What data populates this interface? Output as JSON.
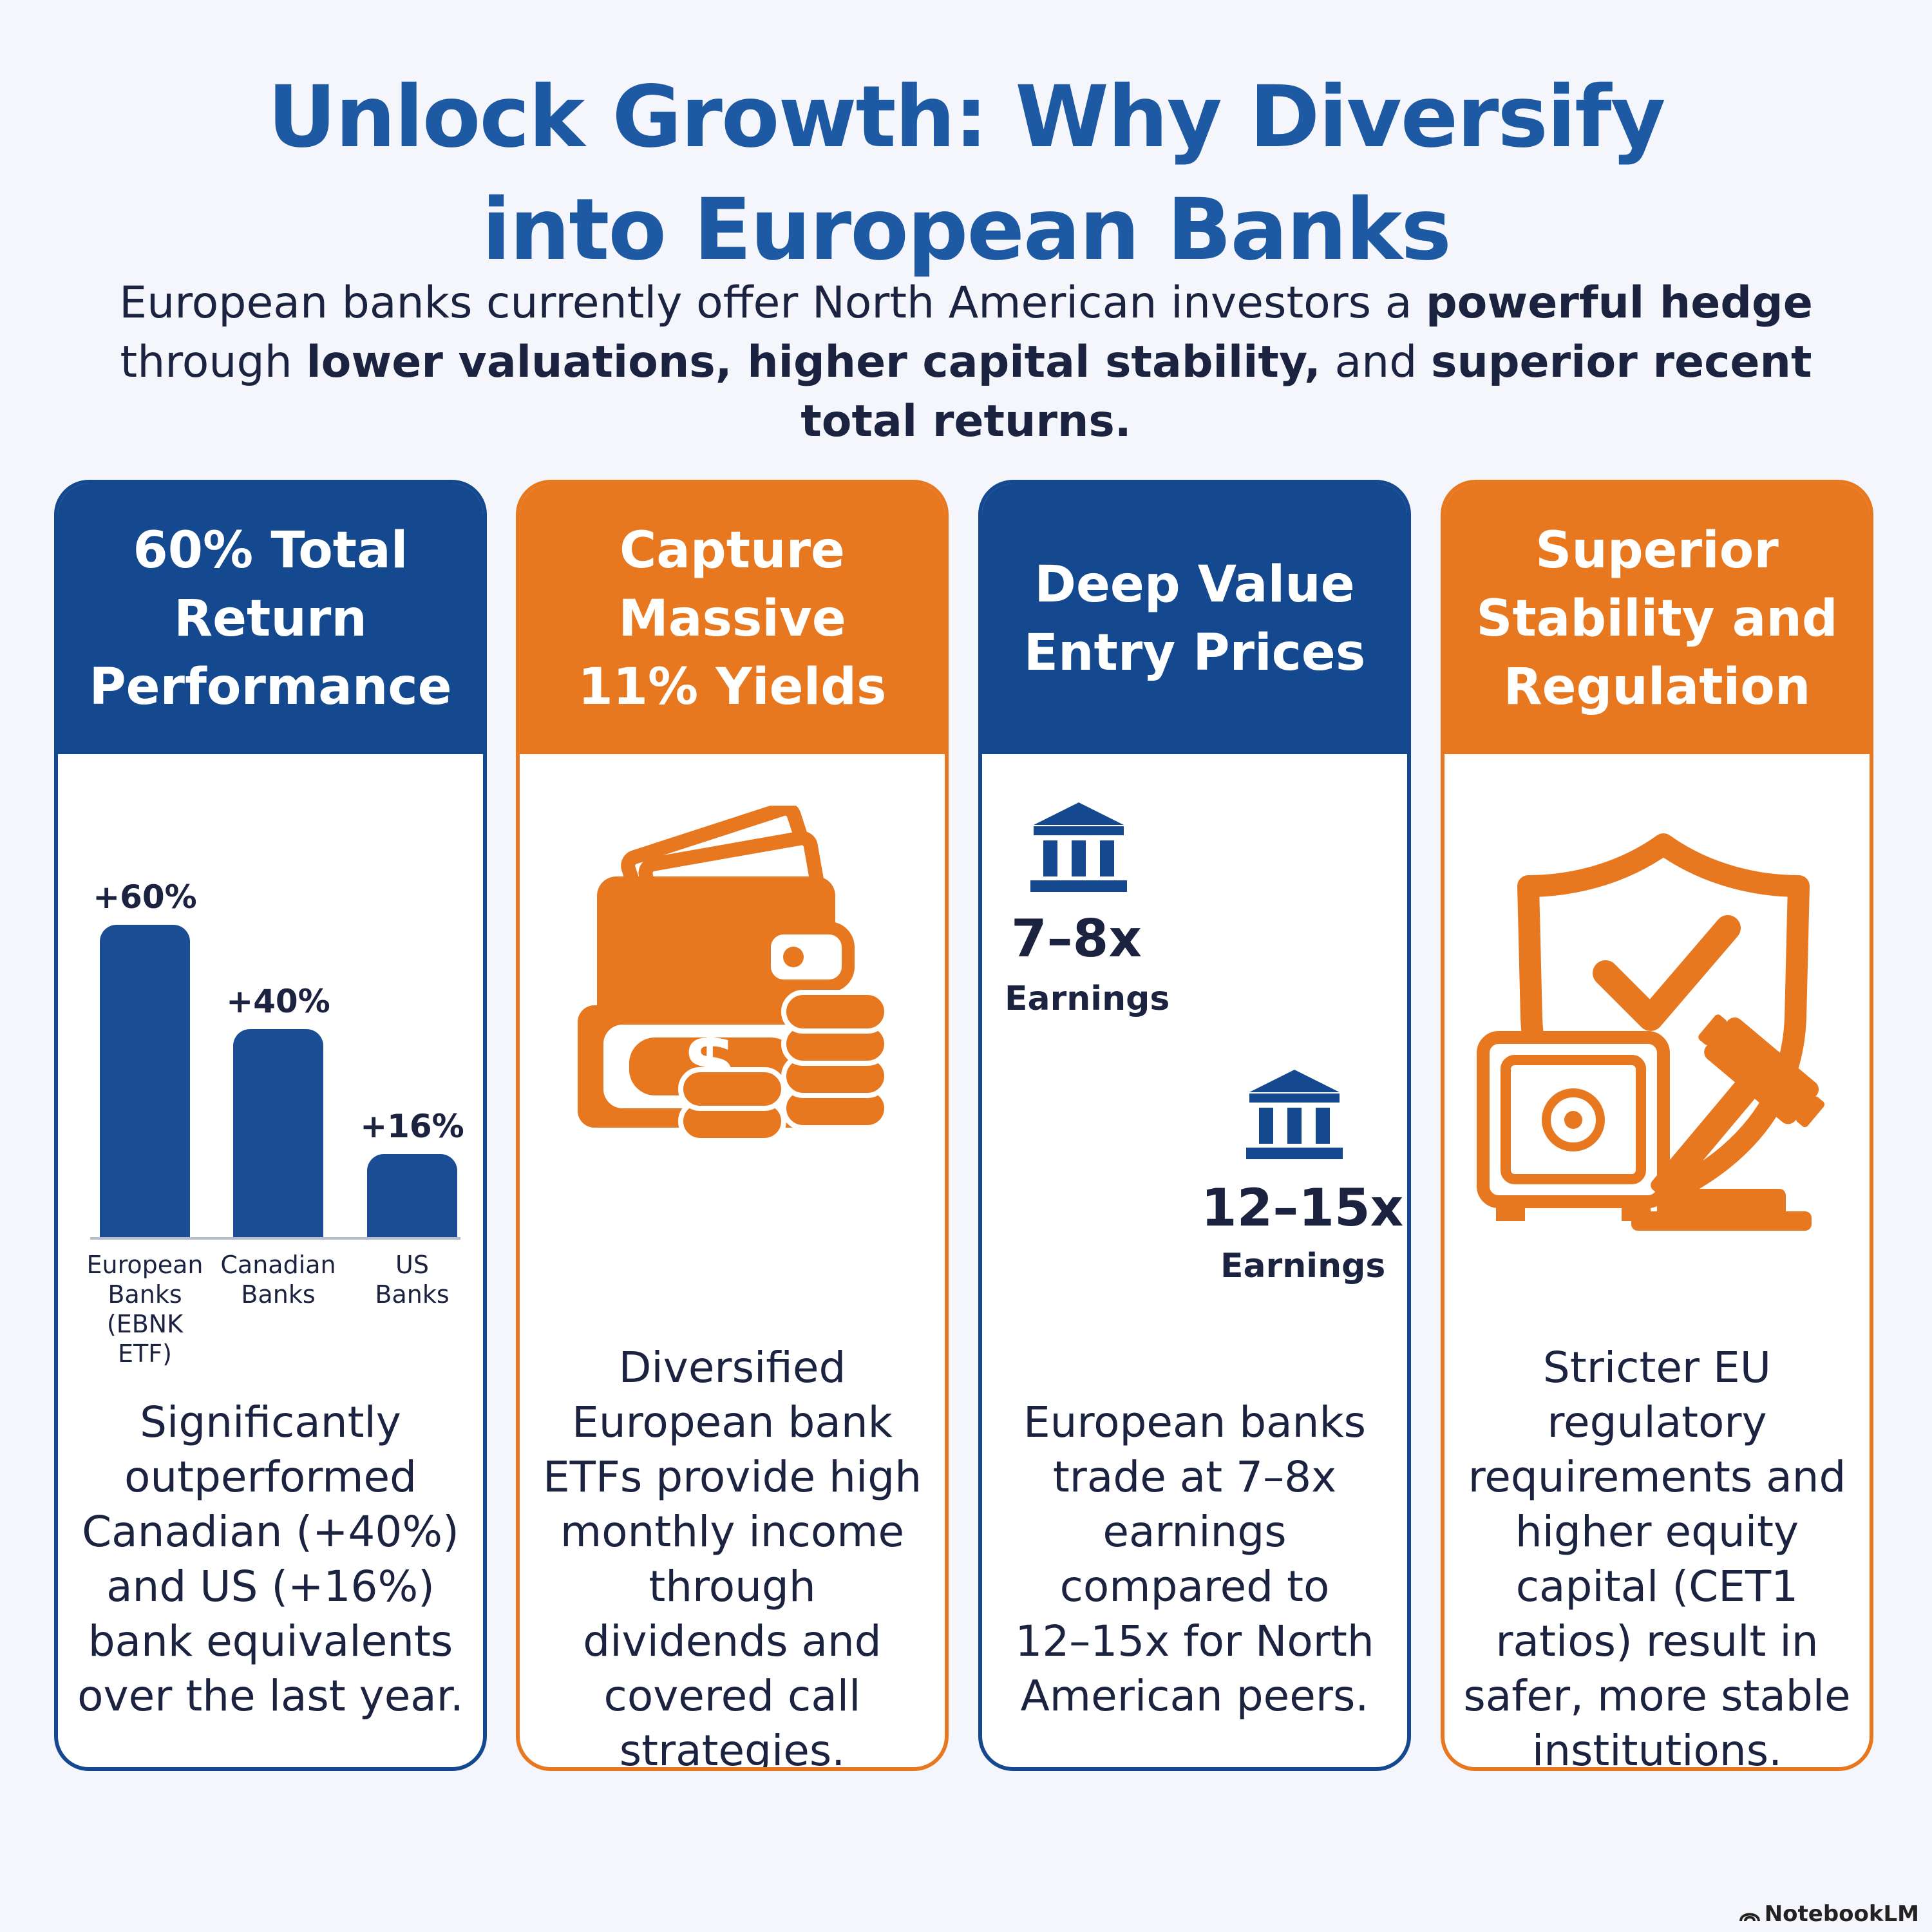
{
  "title": {
    "line1": "Unlock Growth: Why Diversify",
    "line2": "into European Banks"
  },
  "subtitle": {
    "p1": "European banks currently offer North American investors a ",
    "b1": "powerful hedge",
    "p2": " through ",
    "b2": "lower valuations, higher capital stability,",
    "p3": " and ",
    "b3": "superior recent total returns."
  },
  "cards": [
    {
      "title": "60% Total\nReturn\nPerformance",
      "text": "Significantly\noutperformed\nCanadian (+40%)\nand US (+16%)\nbank equivalents\nover the last year."
    },
    {
      "title": "Capture\nMassive\n11% Yields",
      "text": "Diversified\nEuropean bank\nETFs provide high\nmonthly income\nthrough\ndividends and\ncovered call\nstrategies."
    },
    {
      "title": "Deep Value\nEntry Prices",
      "text": "European banks\ntrade at 7–8x\nearnings\ncompared to\n12–15x for North\nAmerican peers."
    },
    {
      "title": "Superior\nStability and\nRegulation",
      "text": "Stricter EU\nregulatory\nrequirements and\nhigher equity\ncapital (CET1\nratios) result in\nsafer, more stable\ninstitutions."
    }
  ],
  "chart_data": {
    "type": "bar",
    "categories": [
      "European\nBanks\n(EBNK ETF)",
      "Canadian\nBanks",
      "US\nBanks"
    ],
    "values": [
      60,
      40,
      16
    ],
    "value_labels": [
      "+60%",
      "+40%",
      "+16%"
    ],
    "ylim": [
      0,
      60
    ]
  },
  "valuation": {
    "eu_value": "7–8x",
    "eu_label": "Earnings",
    "na_value": "12–15x",
    "na_label": "Earnings"
  },
  "icons": {
    "card2": "wallet-cash-coins-icon",
    "card3": "bank-building-icon",
    "card4": "shield-check-safe-gavel-icon"
  },
  "colors": {
    "blue": "#14488f",
    "orange": "#e8781f",
    "title": "#1e5aa3"
  },
  "watermark": "NotebookLM"
}
